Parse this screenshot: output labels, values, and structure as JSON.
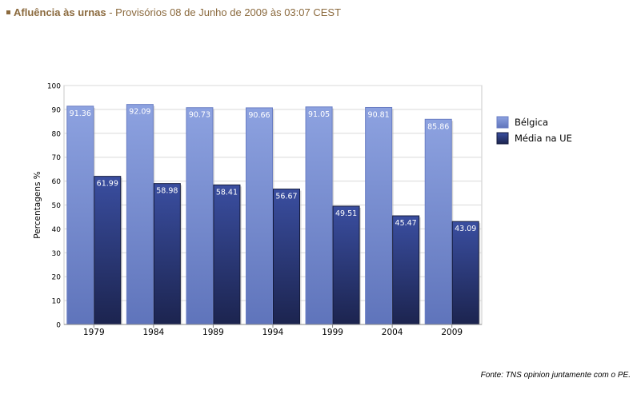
{
  "header": {
    "title": "Afluência às urnas",
    "separator": " - ",
    "subtitle": "Provisórios 08 de Junho de 2009 às 03:07 CEST"
  },
  "source": "Fonte: TNS opinion juntamente com o PE.",
  "chart_data": {
    "type": "bar",
    "categories": [
      "1979",
      "1984",
      "1989",
      "1994",
      "1999",
      "2004",
      "2009"
    ],
    "series": [
      {
        "name": "Bélgica",
        "values": [
          91.36,
          92.09,
          90.73,
          90.66,
          91.05,
          90.81,
          85.86
        ],
        "color": "#7f95d6"
      },
      {
        "name": "Média na UE",
        "values": [
          61.99,
          58.98,
          58.41,
          56.67,
          49.51,
          45.47,
          43.09
        ],
        "color": "#26336e"
      }
    ],
    "ylabel": "Percentagens %",
    "xlabel": "",
    "ylim": [
      0,
      100
    ],
    "yticks": [
      0,
      10,
      20,
      30,
      40,
      50,
      60,
      70,
      80,
      90,
      100
    ],
    "grid": true,
    "legend": "right"
  }
}
